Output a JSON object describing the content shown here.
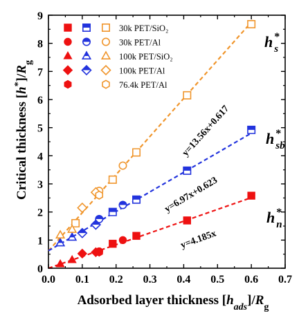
{
  "chart_data": {
    "type": "scatter",
    "xlabel": {
      "pre": "Adsorbed layer thickness [",
      "italic": "h",
      "sub": "ads",
      "post": "]/",
      "italic2": "R",
      "sub2": "g"
    },
    "ylabel": {
      "pre": "Critical thickness [",
      "italic": "h",
      "sup": "*",
      "post": "]/",
      "italic2": "R",
      "sub2": "g"
    },
    "xlim": [
      0.0,
      0.7
    ],
    "ylim": [
      0,
      9
    ],
    "xticks": [
      "0.0",
      "0.1",
      "0.2",
      "0.3",
      "0.4",
      "0.5",
      "0.6",
      "0.7"
    ],
    "yticks": [
      "0",
      "1",
      "2",
      "3",
      "4",
      "5",
      "6",
      "7",
      "8",
      "9"
    ],
    "grid": false,
    "legend": {
      "placement": "top-left",
      "entries": [
        "30k PET/SiO₂",
        "30k PET/Al",
        "100k PET/SiO₂",
        "100k PET/Al",
        "76.4k PET/Al"
      ]
    },
    "fits": [
      {
        "key": "s",
        "slope": 13.56,
        "intercept": 0.617,
        "color": "#f0952b",
        "equation": "y=13.56x+0.617",
        "label": {
          "sym": "h",
          "sup": "*",
          "sub": "s"
        }
      },
      {
        "key": "sb",
        "slope": 6.97,
        "intercept": 0.623,
        "color": "#2233dd",
        "equation": "y=6.97x+0.623",
        "label": {
          "sym": "h",
          "sup": "*",
          "sub": "sb"
        }
      },
      {
        "key": "n",
        "slope": 4.185,
        "intercept": 0,
        "color": "#ee1111",
        "equation": "y=4.185x",
        "label": {
          "sym": "h",
          "sup": "*",
          "sub": "n"
        }
      }
    ],
    "series": [
      {
        "fit": "n",
        "marker": "square",
        "fill": "full",
        "points": [
          [
            0.19,
            0.87
          ],
          [
            0.26,
            1.15
          ],
          [
            0.41,
            1.7
          ],
          [
            0.6,
            2.58
          ]
        ]
      },
      {
        "fit": "n",
        "marker": "circle",
        "fill": "full",
        "points": [
          [
            0.15,
            0.6
          ],
          [
            0.22,
            1.0
          ]
        ]
      },
      {
        "fit": "n",
        "marker": "triangle",
        "fill": "full",
        "points": [
          [
            0.035,
            0.15
          ],
          [
            0.07,
            0.3
          ]
        ]
      },
      {
        "fit": "n",
        "marker": "diamond",
        "fill": "full",
        "points": [
          [
            0.1,
            0.52
          ],
          [
            0.14,
            0.57
          ]
        ]
      },
      {
        "fit": "n",
        "marker": "hexagon",
        "fill": "full",
        "points": [
          [
            0.15,
            0.57
          ]
        ]
      },
      {
        "fit": "sb",
        "marker": "square",
        "fill": "half",
        "points": [
          [
            0.19,
            2.0
          ],
          [
            0.26,
            2.44
          ],
          [
            0.41,
            3.47
          ],
          [
            0.6,
            4.92
          ]
        ]
      },
      {
        "fit": "sb",
        "marker": "circle",
        "fill": "half",
        "points": [
          [
            0.15,
            1.75
          ],
          [
            0.22,
            2.25
          ]
        ]
      },
      {
        "fit": "sb",
        "marker": "triangle",
        "fill": "half",
        "points": [
          [
            0.035,
            0.9
          ],
          [
            0.07,
            1.1
          ]
        ]
      },
      {
        "fit": "sb",
        "marker": "diamond",
        "fill": "half",
        "points": [
          [
            0.1,
            1.25
          ],
          [
            0.14,
            1.55
          ]
        ]
      },
      {
        "fit": "s",
        "marker": "square",
        "fill": "open",
        "points": [
          [
            0.08,
            1.6
          ],
          [
            0.19,
            3.15
          ],
          [
            0.26,
            4.12
          ],
          [
            0.41,
            6.15
          ],
          [
            0.6,
            8.68
          ]
        ]
      },
      {
        "fit": "s",
        "marker": "circle",
        "fill": "open",
        "points": [
          [
            0.15,
            2.75
          ],
          [
            0.22,
            3.65
          ]
        ]
      },
      {
        "fit": "s",
        "marker": "triangle",
        "fill": "open",
        "points": [
          [
            0.035,
            1.18
          ],
          [
            0.07,
            1.38
          ]
        ]
      },
      {
        "fit": "s",
        "marker": "diamond",
        "fill": "open",
        "points": [
          [
            0.1,
            2.15
          ],
          [
            0.14,
            2.7
          ]
        ]
      },
      {
        "fit": "s",
        "marker": "hexagon",
        "fill": "open",
        "points": [
          [
            0.15,
            2.6
          ]
        ]
      }
    ],
    "legend_columns": [
      {
        "color": "#ee1111",
        "fill": "full"
      },
      {
        "color": "#2233dd",
        "fill": "half"
      },
      {
        "color": "#f0952b",
        "fill": "open"
      }
    ],
    "legend_rows": [
      {
        "marker": "square",
        "columns": [
          0,
          1,
          2
        ]
      },
      {
        "marker": "circle",
        "columns": [
          0,
          1,
          2
        ]
      },
      {
        "marker": "triangle",
        "columns": [
          0,
          1,
          2
        ]
      },
      {
        "marker": "diamond",
        "columns": [
          0,
          1,
          2
        ]
      },
      {
        "marker": "hexagon",
        "columns": [
          0,
          2
        ]
      }
    ]
  }
}
